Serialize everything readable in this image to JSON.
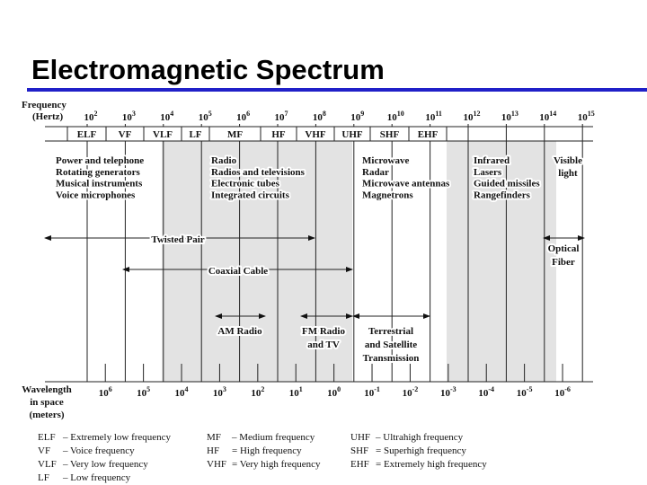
{
  "title": "Electromagnetic Spectrum",
  "frequency_axis": {
    "label": [
      "Frequency",
      "(Hertz)"
    ],
    "ticks": [
      {
        "base": "10",
        "exp": "2"
      },
      {
        "base": "10",
        "exp": "3"
      },
      {
        "base": "10",
        "exp": "4"
      },
      {
        "base": "10",
        "exp": "5"
      },
      {
        "base": "10",
        "exp": "6"
      },
      {
        "base": "10",
        "exp": "7"
      },
      {
        "base": "10",
        "exp": "8"
      },
      {
        "base": "10",
        "exp": "9"
      },
      {
        "base": "10",
        "exp": "10"
      },
      {
        "base": "10",
        "exp": "11"
      },
      {
        "base": "10",
        "exp": "12"
      },
      {
        "base": "10",
        "exp": "13"
      },
      {
        "base": "10",
        "exp": "14"
      },
      {
        "base": "10",
        "exp": "15"
      }
    ]
  },
  "bands": [
    "ELF",
    "VF",
    "VLF",
    "LF",
    "MF",
    "HF",
    "VHF",
    "UHF",
    "SHF",
    "EHF"
  ],
  "groups": [
    {
      "title": "Power and telephone",
      "items": [
        "Rotating generators",
        "Musical instruments",
        "Voice microphones"
      ]
    },
    {
      "title": "Radio",
      "items": [
        "Radios and televisions",
        "Electronic tubes",
        "Integrated circuits"
      ]
    },
    {
      "title": "Microwave",
      "items": [
        "Radar",
        "Microwave antennas",
        "Magnetrons"
      ]
    },
    {
      "title": "Infrared",
      "items": [
        "Lasers",
        "Guided missiles",
        "Rangefinders"
      ]
    }
  ],
  "visible": [
    "Visible",
    "light"
  ],
  "media": [
    {
      "lines": [
        "Twisted Pair"
      ]
    },
    {
      "lines": [
        "Coaxial Cable"
      ]
    },
    {
      "lines": [
        "AM Radio"
      ]
    },
    {
      "lines": [
        "FM Radio",
        "and TV"
      ]
    },
    {
      "lines": [
        "Terrestrial",
        "and Satellite",
        "Transmission"
      ]
    },
    {
      "lines": [
        "Optical",
        "Fiber"
      ]
    }
  ],
  "wavelength_axis": {
    "label": [
      "Wavelength",
      "in space",
      "(meters)"
    ],
    "ticks": [
      {
        "base": "10",
        "exp": "6"
      },
      {
        "base": "10",
        "exp": "5"
      },
      {
        "base": "10",
        "exp": "4"
      },
      {
        "base": "10",
        "exp": "3"
      },
      {
        "base": "10",
        "exp": "2"
      },
      {
        "base": "10",
        "exp": "1"
      },
      {
        "base": "10",
        "exp": "0"
      },
      {
        "base": "10",
        "exp": "-1"
      },
      {
        "base": "10",
        "exp": "-2"
      },
      {
        "base": "10",
        "exp": "-3"
      },
      {
        "base": "10",
        "exp": "-4"
      },
      {
        "base": "10",
        "exp": "-5"
      },
      {
        "base": "10",
        "exp": "-6"
      }
    ]
  },
  "legend": [
    [
      {
        "abbr": "ELF",
        "text": "– Extremely low frequency"
      },
      {
        "abbr": "VF",
        "text": "– Voice frequency"
      },
      {
        "abbr": "VLF",
        "text": "– Very low frequency"
      },
      {
        "abbr": "LF",
        "text": "– Low frequency"
      }
    ],
    [
      {
        "abbr": "MF",
        "text": "– Medium frequency"
      },
      {
        "abbr": "HF",
        "text": "= High frequency"
      },
      {
        "abbr": "VHF",
        "text": "= Very high frequency"
      }
    ],
    [
      {
        "abbr": "UHF",
        "text": "– Ultrahigh frequency"
      },
      {
        "abbr": "SHF",
        "text": "= Superhigh frequency"
      },
      {
        "abbr": "EHF",
        "text": "= Extremely high frequency"
      }
    ]
  ]
}
